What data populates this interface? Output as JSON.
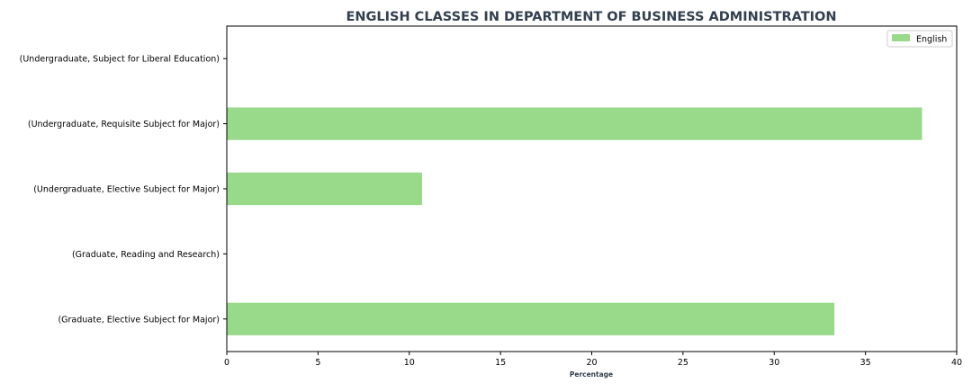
{
  "chart_data": {
    "type": "bar",
    "orientation": "horizontal",
    "title": "ENGLISH CLASSES IN DEPARTMENT OF BUSINESS ADMINISTRATION",
    "xlabel": "Percentage",
    "ylabel": "",
    "categories": [
      "(Undergraduate, Subject for Liberal Education)",
      "(Undergraduate, Requisite Subject for Major)",
      "(Undergraduate, Elective Subject for Major)",
      "(Graduate, Reading and Research)",
      "(Graduate, Elective Subject for Major)"
    ],
    "series": [
      {
        "name": "English",
        "values": [
          0,
          38.1,
          10.7,
          0,
          33.3
        ],
        "color": "#98d98a"
      }
    ],
    "xlim": [
      0,
      40
    ],
    "xticks": [
      0,
      5,
      10,
      15,
      20,
      25,
      30,
      35,
      40
    ],
    "grid": false,
    "legend_position": "top-right",
    "title_color": "#333f4f",
    "axis_color": "#000000"
  }
}
